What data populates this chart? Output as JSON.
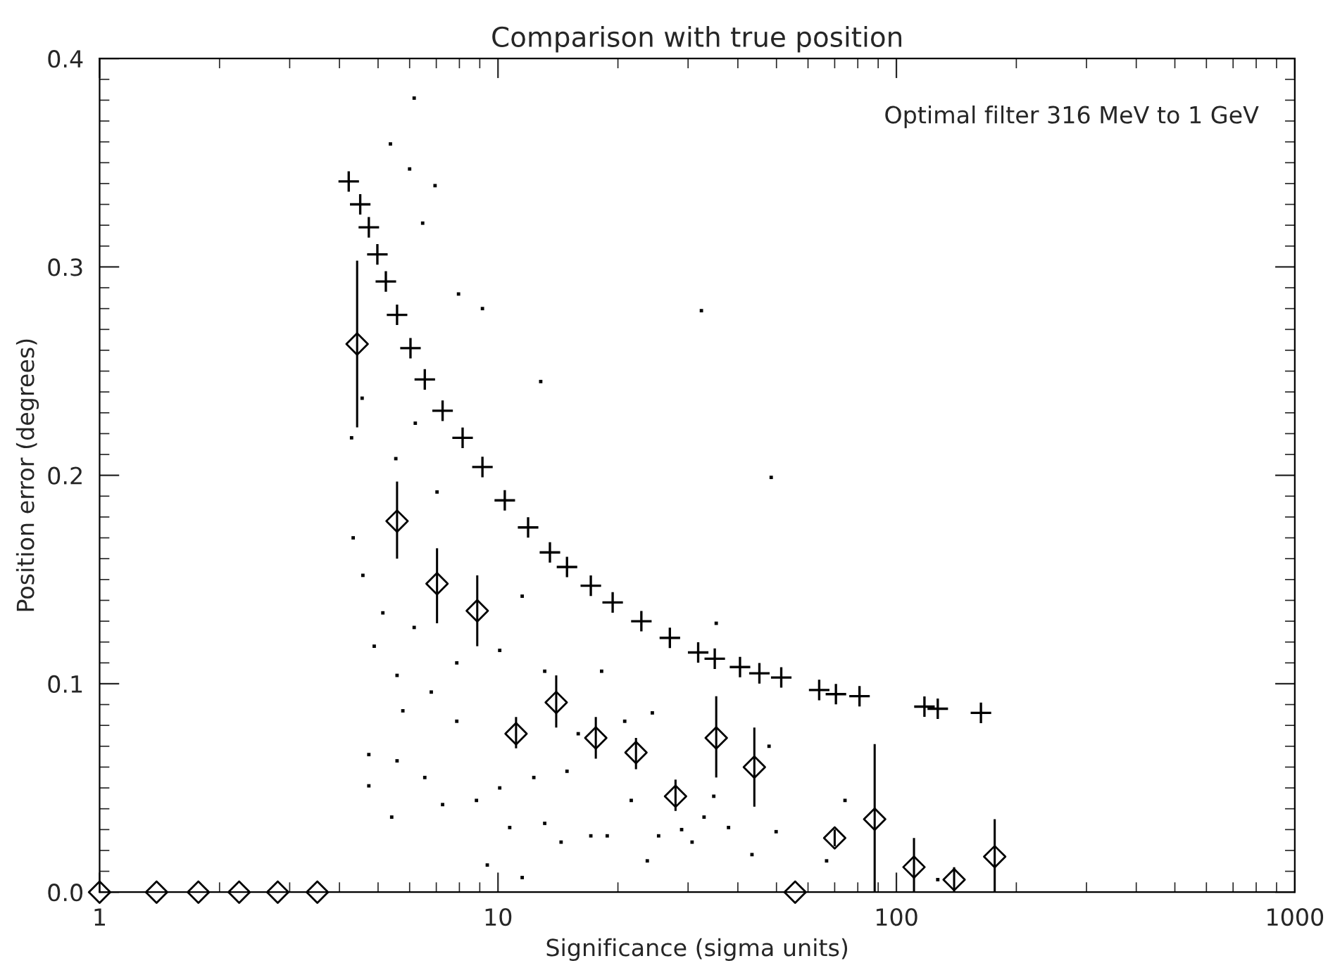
{
  "chart_data": {
    "type": "scatter",
    "title": "Comparison with true position",
    "xlabel": "Significance (sigma units)",
    "ylabel": "Position error (degrees)",
    "annotations": [
      "Optimal filter 316 MeV to 1 GeV"
    ],
    "log": "x",
    "xlim": [
      1,
      1000
    ],
    "xticks": [
      1,
      10,
      100,
      1000
    ],
    "ylim": [
      0,
      0.4
    ],
    "yticks": [
      {
        "value": 0,
        "label": "0.0"
      },
      {
        "value": 0.1,
        "label": "0.1"
      },
      {
        "value": 0.2,
        "label": "0.2"
      },
      {
        "value": 0.3,
        "label": "0.3"
      },
      {
        "value": 0.4,
        "label": "0.4"
      }
    ],
    "grid": false,
    "legend": false,
    "series": [
      {
        "marker": "square",
        "color": "#000000",
        "x": [
          6.16,
          5.37,
          6.0,
          6.95,
          6.47,
          7.96,
          9.14,
          12.8,
          32.4,
          4.56,
          6.2,
          4.29,
          5.54,
          7.03,
          4.33,
          4.58,
          5.14,
          4.89,
          6.16,
          7.88,
          10.1,
          5.58,
          6.8,
          7.88,
          5.77,
          4.74,
          5.58,
          6.55,
          4.74,
          5.41,
          7.26,
          8.83,
          10.1,
          10.7,
          9.4,
          11.5,
          12.3,
          14.9,
          13.1,
          14.4,
          17.1,
          18.8,
          21.6,
          25.3,
          23.7,
          28.9,
          32.9,
          18.2,
          20.8,
          24.4,
          15.9,
          13.1,
          11.5,
          48.5,
          35.3,
          47.9,
          34.8,
          37.9,
          43.4,
          49.9,
          74.3,
          66.8,
          127,
          30.7
        ],
        "values": [
          0.381,
          0.359,
          0.347,
          0.339,
          0.321,
          0.287,
          0.28,
          0.245,
          0.279,
          0.237,
          0.225,
          0.218,
          0.208,
          0.192,
          0.17,
          0.152,
          0.134,
          0.118,
          0.127,
          0.11,
          0.116,
          0.104,
          0.096,
          0.082,
          0.087,
          0.066,
          0.063,
          0.055,
          0.051,
          0.036,
          0.042,
          0.044,
          0.05,
          0.031,
          0.013,
          0.007,
          0.055,
          0.058,
          0.033,
          0.024,
          0.027,
          0.027,
          0.044,
          0.027,
          0.015,
          0.03,
          0.036,
          0.106,
          0.082,
          0.086,
          0.076,
          0.106,
          0.142,
          0.199,
          0.129,
          0.07,
          0.046,
          0.031,
          0.018,
          0.029,
          0.044,
          0.015,
          0.006,
          0.024
        ]
      },
      {
        "marker": "cross",
        "color": "#000000",
        "x": [
          4.22,
          4.51,
          4.74,
          4.98,
          5.23,
          5.58,
          6.03,
          6.55,
          7.26,
          8.15,
          9.14,
          10.4,
          11.9,
          13.5,
          14.9,
          17.1,
          19.4,
          22.9,
          27.0,
          31.8,
          35.0,
          40.5,
          45.3,
          51.4,
          64.0,
          70.5,
          80.8,
          117.6,
          127,
          163
        ],
        "values": [
          0.341,
          0.33,
          0.319,
          0.306,
          0.293,
          0.277,
          0.261,
          0.246,
          0.231,
          0.218,
          0.204,
          0.188,
          0.175,
          0.163,
          0.156,
          0.147,
          0.139,
          0.13,
          0.122,
          0.115,
          0.112,
          0.108,
          0.105,
          0.103,
          0.097,
          0.095,
          0.094,
          0.089,
          0.088,
          0.086
        ]
      },
      {
        "marker": "diamond",
        "color": "#000000",
        "x": [
          1.0,
          1.39,
          1.77,
          2.24,
          2.8,
          3.52,
          4.43,
          5.58,
          7.03,
          8.87,
          11.1,
          14.0,
          17.6,
          22.2,
          27.9,
          35.3,
          44.0,
          55.7,
          70.0,
          88.2,
          110.7,
          139.6,
          176.5
        ],
        "values": [
          0,
          0,
          0,
          0,
          0,
          0,
          0.263,
          0.178,
          0.148,
          0.135,
          0.076,
          0.091,
          0.074,
          0.067,
          0.046,
          0.074,
          0.06,
          0,
          0.026,
          0.035,
          0.012,
          0.006,
          0.017
        ],
        "errors": [
          null,
          null,
          null,
          null,
          null,
          null,
          [
            0.223,
            0.303
          ],
          [
            0.16,
            0.197
          ],
          [
            0.129,
            0.165
          ],
          [
            0.118,
            0.152
          ],
          [
            0.069,
            0.084
          ],
          [
            0.079,
            0.104
          ],
          [
            0.064,
            0.084
          ],
          [
            0.059,
            0.074
          ],
          [
            0.039,
            0.054
          ],
          [
            0.055,
            0.094
          ],
          [
            0.041,
            0.079
          ],
          null,
          [
            0.022,
            0.03
          ],
          [
            0,
            0.071
          ],
          [
            0,
            0.026
          ],
          [
            0,
            0.012
          ],
          [
            0,
            0.035
          ]
        ]
      }
    ]
  }
}
